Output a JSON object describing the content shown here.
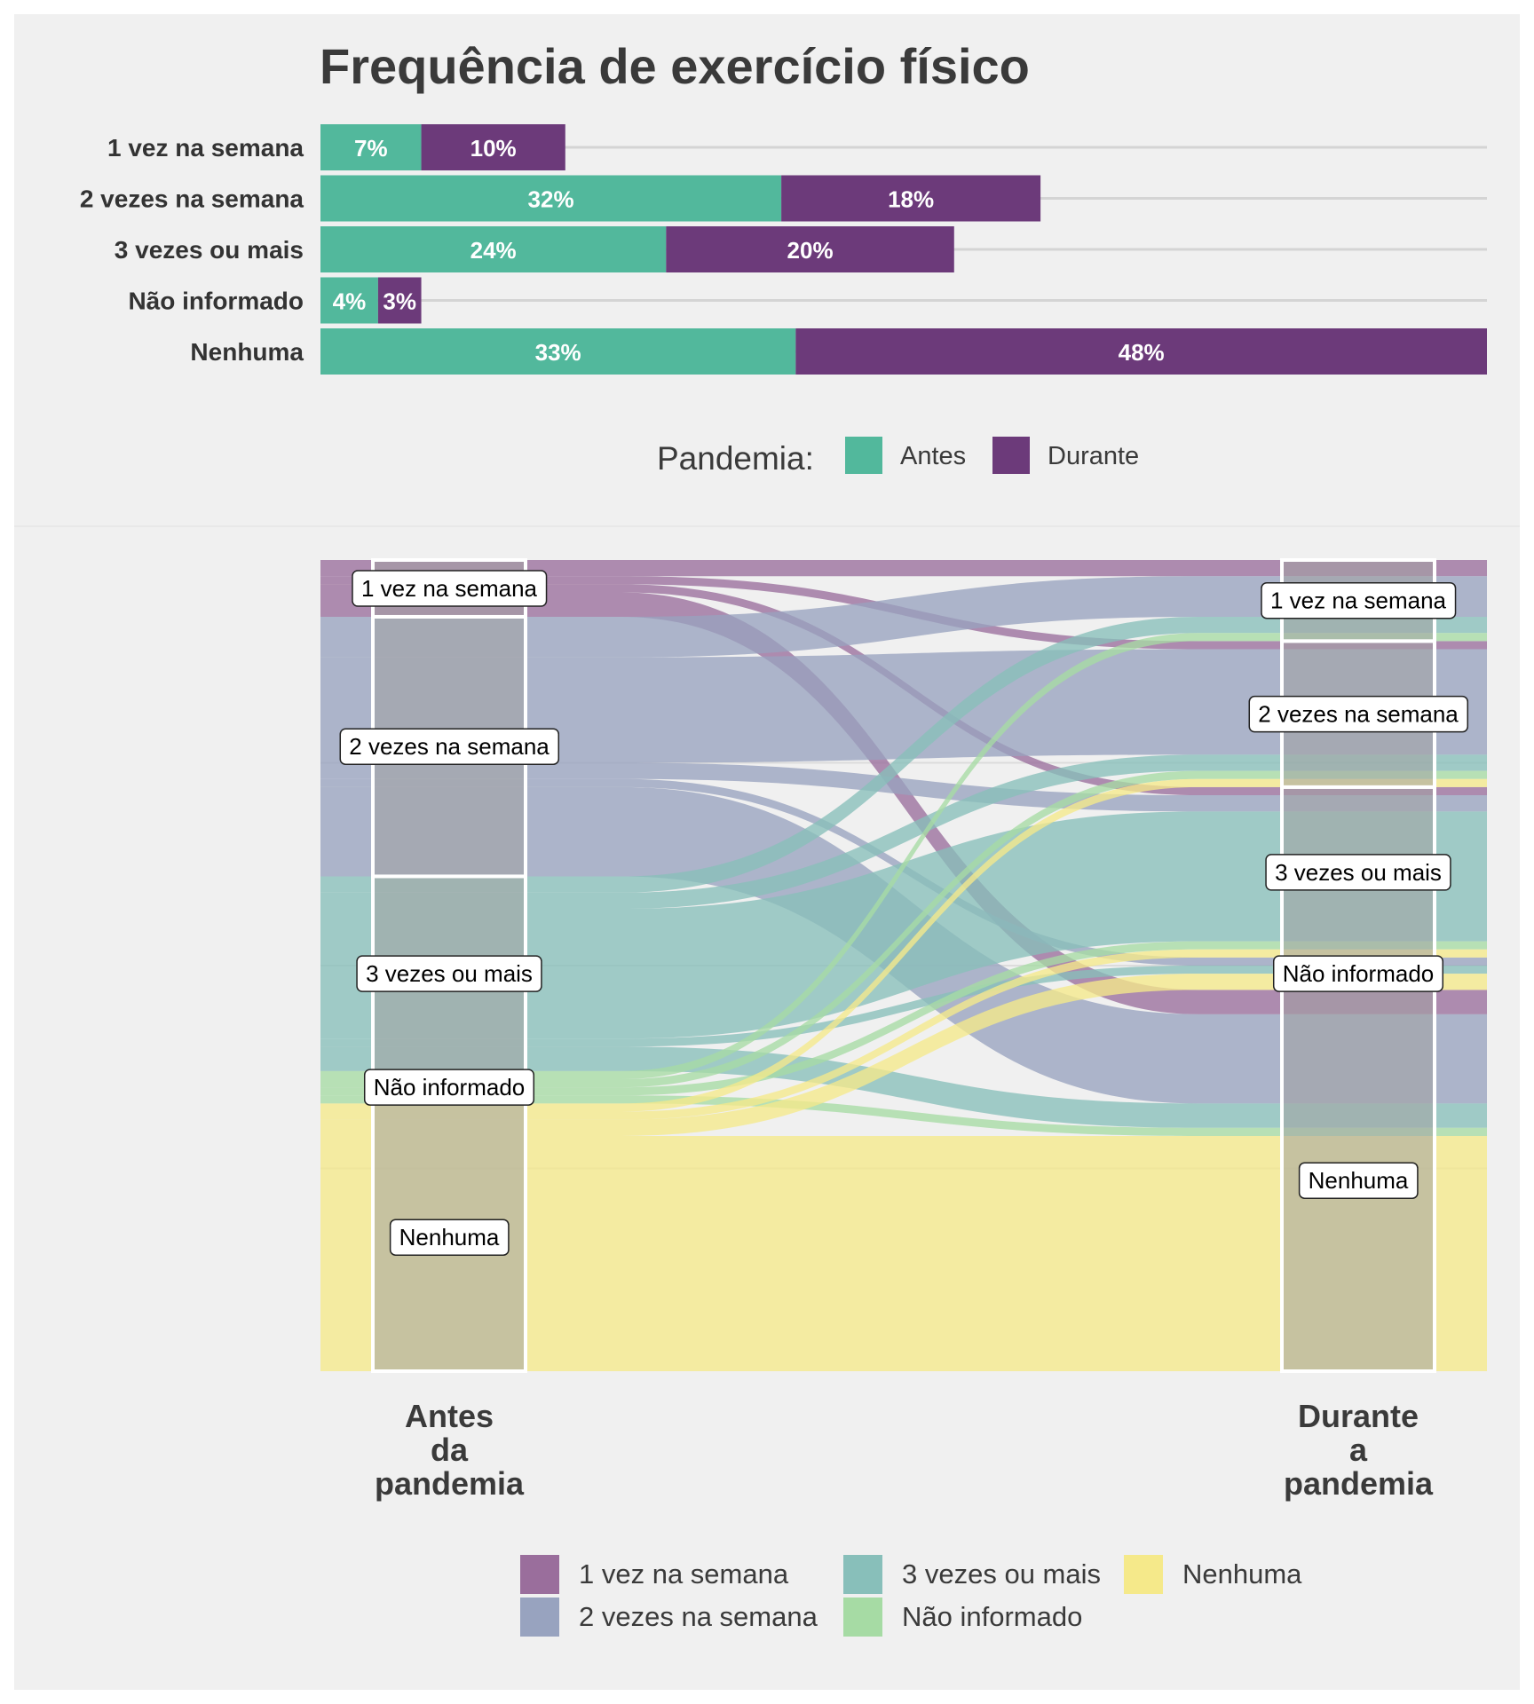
{
  "title": "Frequência de exercício físico",
  "chart_data": [
    {
      "type": "bar",
      "orientation": "horizontal",
      "stacked": true,
      "categories": [
        "1 vez na semana",
        "2 vezes na semana",
        "3 vezes ou mais",
        "Não informado",
        "Nenhuma"
      ],
      "series": [
        {
          "name": "Antes",
          "values": [
            7,
            32,
            24,
            4,
            33
          ],
          "labels": [
            "7%",
            "32%",
            "24%",
            "4%",
            "33%"
          ],
          "color": "#52b89c"
        },
        {
          "name": "Durante",
          "values": [
            10,
            18,
            20,
            3,
            48
          ],
          "labels": [
            "10%",
            "18%",
            "20%",
            "3%",
            "48%"
          ],
          "color": "#6c3a7a"
        }
      ],
      "xlim": [
        0,
        81
      ],
      "legend_title": "Pandemia:",
      "legend_position": "bottom"
    },
    {
      "type": "sankey",
      "axes": [
        {
          "key": "antes",
          "label": "Antes\nda\npandemia",
          "label_lines": [
            "Antes",
            "da",
            "pandemia"
          ]
        },
        {
          "key": "durante",
          "label": "Durante\na\npandemia",
          "label_lines": [
            "Durante",
            "a",
            "pandemia"
          ]
        }
      ],
      "strata": [
        "1 vez na semana",
        "2 vezes na semana",
        "3 vezes ou mais",
        "Não informado",
        "Nenhuma"
      ],
      "stratum_colors": [
        "#9a6e9c",
        "#98a3bf",
        "#88bfba",
        "#a6dba4",
        "#f5e98a"
      ],
      "flows": [
        {
          "from": "1 vez na semana",
          "to": "1 vez na semana",
          "value": 2
        },
        {
          "from": "1 vez na semana",
          "to": "2 vezes na semana",
          "value": 1
        },
        {
          "from": "1 vez na semana",
          "to": "3 vezes ou mais",
          "value": 1
        },
        {
          "from": "1 vez na semana",
          "to": "Nenhuma",
          "value": 3
        },
        {
          "from": "2 vezes na semana",
          "to": "1 vez na semana",
          "value": 5
        },
        {
          "from": "2 vezes na semana",
          "to": "2 vezes na semana",
          "value": 13
        },
        {
          "from": "2 vezes na semana",
          "to": "3 vezes ou mais",
          "value": 2
        },
        {
          "from": "2 vezes na semana",
          "to": "Não informado",
          "value": 1
        },
        {
          "from": "2 vezes na semana",
          "to": "Nenhuma",
          "value": 11
        },
        {
          "from": "3 vezes ou mais",
          "to": "1 vez na semana",
          "value": 2
        },
        {
          "from": "3 vezes ou mais",
          "to": "2 vezes na semana",
          "value": 2
        },
        {
          "from": "3 vezes ou mais",
          "to": "3 vezes ou mais",
          "value": 16
        },
        {
          "from": "3 vezes ou mais",
          "to": "Não informado",
          "value": 1
        },
        {
          "from": "3 vezes ou mais",
          "to": "Nenhuma",
          "value": 3
        },
        {
          "from": "Não informado",
          "to": "1 vez na semana",
          "value": 1
        },
        {
          "from": "Não informado",
          "to": "2 vezes na semana",
          "value": 1
        },
        {
          "from": "Não informado",
          "to": "3 vezes ou mais",
          "value": 1
        },
        {
          "from": "Não informado",
          "to": "Nenhuma",
          "value": 1
        },
        {
          "from": "Nenhuma",
          "to": "2 vezes na semana",
          "value": 1
        },
        {
          "from": "Nenhuma",
          "to": "3 vezes ou mais",
          "value": 1
        },
        {
          "from": "Nenhuma",
          "to": "Não informado",
          "value": 2
        },
        {
          "from": "Nenhuma",
          "to": "Nenhuma",
          "value": 29
        }
      ],
      "legend_position": "bottom"
    }
  ]
}
